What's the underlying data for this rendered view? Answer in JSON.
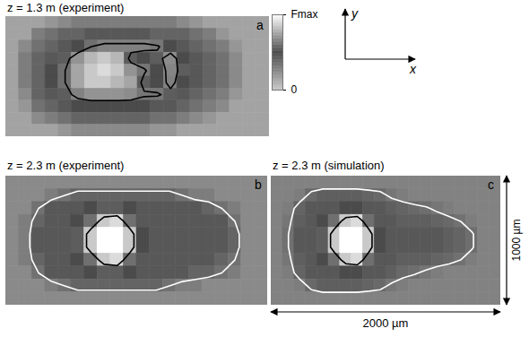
{
  "colorbar": {
    "range": [
      0,
      1
    ],
    "ticks": [
      0,
      {
        "value": 1,
        "label": "Fmax"
      }
    ]
  },
  "axes_glyph": {
    "x": "x",
    "y": "y"
  },
  "chart_data": [
    {
      "type": "heatmap",
      "panel": "a",
      "title": "z = 1.3 m (experiment)",
      "xlim": [
        0,
        2000
      ],
      "ylim": [
        0,
        1000
      ],
      "tick_labels": false,
      "cells": [
        [
          0.15,
          0.15,
          0.15,
          0.2,
          0.25,
          0.3,
          0.3,
          0.3,
          0.3,
          0.3,
          0.3,
          0.3,
          0.3,
          0.25,
          0.2,
          0.15,
          0.15,
          0.15,
          0.15,
          0.15
        ],
        [
          0.15,
          0.15,
          0.3,
          0.35,
          0.4,
          0.4,
          0.45,
          0.45,
          0.45,
          0.45,
          0.45,
          0.4,
          0.4,
          0.4,
          0.35,
          0.3,
          0.2,
          0.15,
          0.15,
          0.15
        ],
        [
          0.15,
          0.25,
          0.35,
          0.4,
          0.45,
          0.5,
          0.6,
          0.65,
          0.65,
          0.65,
          0.65,
          0.62,
          0.5,
          0.45,
          0.4,
          0.35,
          0.3,
          0.2,
          0.15,
          0.15
        ],
        [
          0.15,
          0.3,
          0.4,
          0.45,
          0.55,
          0.7,
          0.8,
          0.85,
          0.8,
          0.55,
          0.5,
          0.55,
          0.68,
          0.5,
          0.45,
          0.4,
          0.35,
          0.25,
          0.15,
          0.15
        ],
        [
          0.15,
          0.3,
          0.4,
          0.5,
          0.6,
          0.75,
          0.85,
          0.9,
          0.85,
          0.7,
          0.62,
          0.5,
          0.66,
          0.55,
          0.45,
          0.4,
          0.35,
          0.25,
          0.15,
          0.15
        ],
        [
          0.15,
          0.3,
          0.4,
          0.5,
          0.6,
          0.75,
          0.85,
          0.85,
          0.8,
          0.75,
          0.55,
          0.5,
          0.65,
          0.5,
          0.45,
          0.4,
          0.35,
          0.25,
          0.15,
          0.15
        ],
        [
          0.15,
          0.25,
          0.4,
          0.45,
          0.55,
          0.65,
          0.7,
          0.7,
          0.7,
          0.68,
          0.62,
          0.62,
          0.55,
          0.45,
          0.4,
          0.35,
          0.3,
          0.2,
          0.15,
          0.15
        ],
        [
          0.15,
          0.2,
          0.35,
          0.4,
          0.45,
          0.5,
          0.5,
          0.5,
          0.5,
          0.5,
          0.5,
          0.45,
          0.45,
          0.4,
          0.35,
          0.3,
          0.25,
          0.15,
          0.15,
          0.15
        ],
        [
          0.15,
          0.15,
          0.25,
          0.3,
          0.35,
          0.4,
          0.4,
          0.4,
          0.4,
          0.4,
          0.4,
          0.35,
          0.35,
          0.3,
          0.25,
          0.2,
          0.15,
          0.15,
          0.15,
          0.15
        ],
        [
          0.15,
          0.15,
          0.15,
          0.15,
          0.2,
          0.25,
          0.25,
          0.25,
          0.25,
          0.25,
          0.25,
          0.2,
          0.2,
          0.15,
          0.15,
          0.15,
          0.15,
          0.15,
          0.15,
          0.15
        ]
      ],
      "contours": [
        {
          "level": 0.6,
          "color": "black"
        }
      ]
    },
    {
      "type": "heatmap",
      "panel": "b",
      "title": "z = 2.3 m (experiment)",
      "xlim": [
        0,
        2000
      ],
      "ylim": [
        0,
        1000
      ],
      "tick_labels": false,
      "cells": [
        [
          0.25,
          0.25,
          0.25,
          0.25,
          0.25,
          0.25,
          0.25,
          0.25,
          0.25,
          0.25,
          0.25,
          0.25,
          0.25,
          0.25,
          0.25,
          0.25,
          0.25,
          0.25,
          0.25,
          0.25
        ],
        [
          0.25,
          0.25,
          0.25,
          0.3,
          0.35,
          0.4,
          0.4,
          0.4,
          0.4,
          0.4,
          0.4,
          0.4,
          0.4,
          0.35,
          0.3,
          0.3,
          0.25,
          0.25,
          0.25,
          0.25
        ],
        [
          0.25,
          0.25,
          0.35,
          0.45,
          0.45,
          0.45,
          0.5,
          0.55,
          0.55,
          0.5,
          0.45,
          0.45,
          0.45,
          0.45,
          0.45,
          0.4,
          0.35,
          0.3,
          0.25,
          0.25
        ],
        [
          0.25,
          0.3,
          0.4,
          0.45,
          0.45,
          0.5,
          0.6,
          0.85,
          0.9,
          0.6,
          0.45,
          0.45,
          0.45,
          0.45,
          0.45,
          0.45,
          0.45,
          0.35,
          0.25,
          0.25
        ],
        [
          0.25,
          0.3,
          0.45,
          0.45,
          0.45,
          0.55,
          0.85,
          1,
          1,
          0.85,
          0.5,
          0.45,
          0.45,
          0.45,
          0.45,
          0.45,
          0.45,
          0.4,
          0.25,
          0.25
        ],
        [
          0.25,
          0.3,
          0.45,
          0.45,
          0.45,
          0.55,
          0.85,
          1,
          1,
          0.85,
          0.5,
          0.45,
          0.45,
          0.45,
          0.45,
          0.45,
          0.45,
          0.4,
          0.25,
          0.25
        ],
        [
          0.25,
          0.3,
          0.4,
          0.45,
          0.45,
          0.5,
          0.6,
          0.85,
          0.9,
          0.6,
          0.45,
          0.45,
          0.45,
          0.45,
          0.45,
          0.45,
          0.4,
          0.35,
          0.25,
          0.25
        ],
        [
          0.25,
          0.25,
          0.35,
          0.45,
          0.45,
          0.45,
          0.5,
          0.55,
          0.55,
          0.5,
          0.45,
          0.45,
          0.45,
          0.45,
          0.4,
          0.4,
          0.35,
          0.3,
          0.25,
          0.25
        ],
        [
          0.25,
          0.25,
          0.25,
          0.3,
          0.35,
          0.4,
          0.4,
          0.4,
          0.4,
          0.4,
          0.4,
          0.4,
          0.35,
          0.3,
          0.3,
          0.25,
          0.25,
          0.25,
          0.25,
          0.25
        ],
        [
          0.25,
          0.25,
          0.25,
          0.25,
          0.25,
          0.25,
          0.25,
          0.25,
          0.25,
          0.25,
          0.25,
          0.25,
          0.25,
          0.25,
          0.25,
          0.25,
          0.25,
          0.25,
          0.25,
          0.25
        ]
      ],
      "contours": [
        {
          "level": 0.75,
          "color": "black"
        },
        {
          "level": 0.35,
          "color": "white"
        }
      ]
    },
    {
      "type": "heatmap",
      "panel": "c",
      "title": "z = 2.3 m (simulation)",
      "xlim": [
        0,
        2000
      ],
      "ylim": [
        0,
        1000
      ],
      "tick_labels": false,
      "cells": [
        [
          0.28,
          0.28,
          0.28,
          0.28,
          0.28,
          0.28,
          0.28,
          0.28,
          0.28,
          0.28,
          0.28,
          0.28,
          0.28,
          0.28,
          0.28,
          0.28,
          0.28,
          0.28,
          0.28,
          0.28
        ],
        [
          0.28,
          0.28,
          0.3,
          0.38,
          0.42,
          0.42,
          0.42,
          0.42,
          0.4,
          0.38,
          0.33,
          0.3,
          0.28,
          0.28,
          0.28,
          0.28,
          0.28,
          0.28,
          0.28,
          0.28
        ],
        [
          0.28,
          0.3,
          0.4,
          0.45,
          0.45,
          0.45,
          0.5,
          0.5,
          0.45,
          0.45,
          0.42,
          0.4,
          0.38,
          0.36,
          0.33,
          0.3,
          0.28,
          0.28,
          0.28,
          0.28
        ],
        [
          0.28,
          0.33,
          0.42,
          0.45,
          0.5,
          0.6,
          0.85,
          0.9,
          0.6,
          0.45,
          0.45,
          0.42,
          0.42,
          0.42,
          0.4,
          0.38,
          0.35,
          0.3,
          0.28,
          0.28
        ],
        [
          0.28,
          0.35,
          0.45,
          0.45,
          0.55,
          0.85,
          1,
          1,
          0.85,
          0.5,
          0.45,
          0.45,
          0.45,
          0.45,
          0.45,
          0.42,
          0.4,
          0.36,
          0.28,
          0.28
        ],
        [
          0.28,
          0.35,
          0.45,
          0.45,
          0.55,
          0.85,
          1,
          1,
          0.85,
          0.5,
          0.45,
          0.45,
          0.45,
          0.45,
          0.45,
          0.42,
          0.4,
          0.36,
          0.28,
          0.28
        ],
        [
          0.28,
          0.33,
          0.42,
          0.45,
          0.5,
          0.6,
          0.85,
          0.9,
          0.6,
          0.45,
          0.45,
          0.42,
          0.42,
          0.42,
          0.4,
          0.38,
          0.35,
          0.3,
          0.28,
          0.28
        ],
        [
          0.28,
          0.3,
          0.4,
          0.45,
          0.45,
          0.45,
          0.5,
          0.5,
          0.45,
          0.45,
          0.42,
          0.38,
          0.36,
          0.33,
          0.3,
          0.28,
          0.28,
          0.28,
          0.28,
          0.28
        ],
        [
          0.28,
          0.28,
          0.3,
          0.38,
          0.42,
          0.42,
          0.42,
          0.42,
          0.4,
          0.38,
          0.33,
          0.3,
          0.28,
          0.28,
          0.28,
          0.28,
          0.28,
          0.28,
          0.28,
          0.28
        ],
        [
          0.28,
          0.28,
          0.28,
          0.28,
          0.28,
          0.28,
          0.28,
          0.28,
          0.28,
          0.28,
          0.28,
          0.28,
          0.28,
          0.28,
          0.28,
          0.28,
          0.28,
          0.28,
          0.28,
          0.28
        ]
      ],
      "contours": [
        {
          "level": 0.75,
          "color": "black"
        },
        {
          "level": 0.35,
          "color": "white"
        }
      ],
      "scale_bars": [
        {
          "axis": "y",
          "length": 1000,
          "label": "1000 µm"
        },
        {
          "axis": "x",
          "length": 2000,
          "label": "2000 µm"
        }
      ]
    }
  ]
}
